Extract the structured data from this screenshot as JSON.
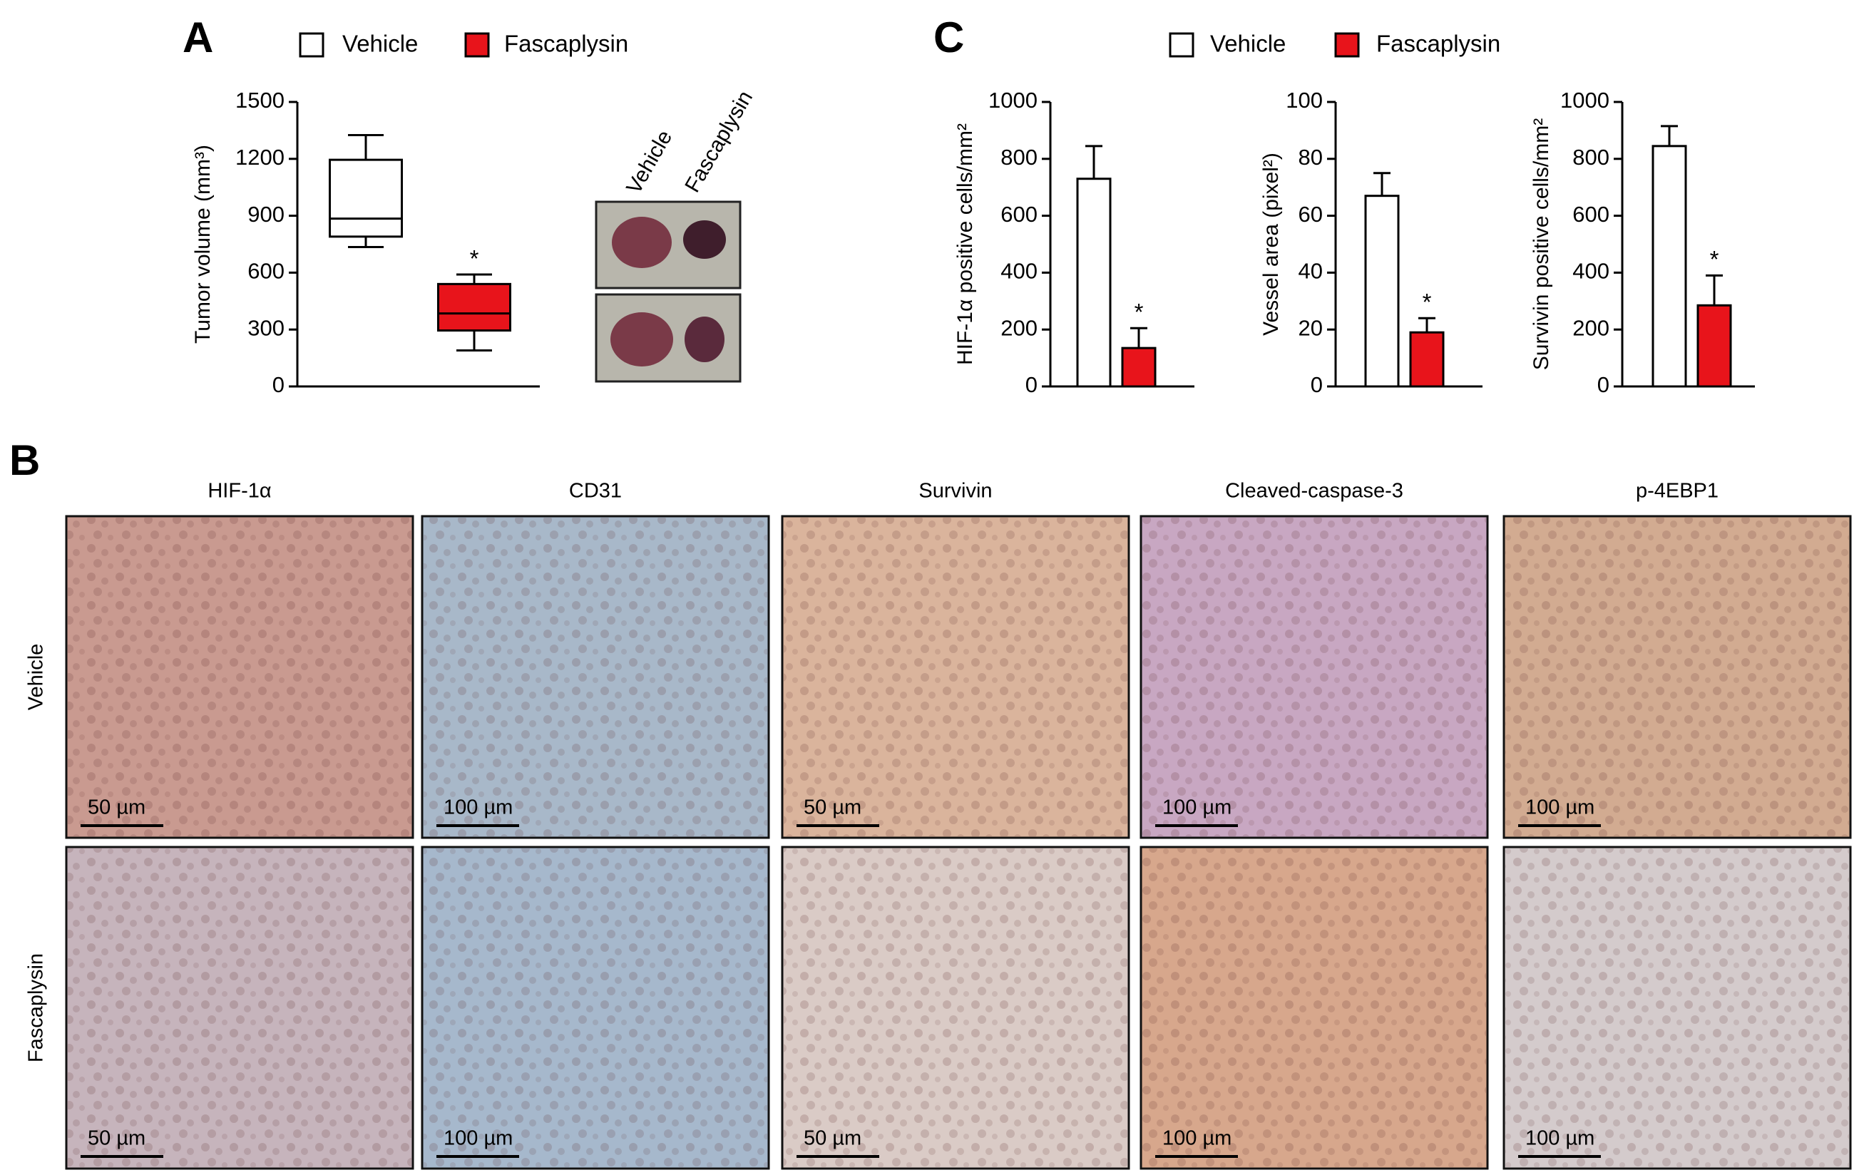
{
  "panel_labels": [
    "A",
    "B",
    "C"
  ],
  "legend": [
    {
      "name": "Vehicle",
      "color": "#ffffff"
    },
    {
      "name": "Fascaplysin",
      "color": "#e8141b"
    }
  ],
  "chart_data": [
    {
      "type": "box",
      "ylabel": "Tumor volume (mm³)",
      "categories": [
        null,
        null
      ],
      "boxes": [
        {
          "min": 735,
          "q1": 790,
          "median": 885,
          "q3": 1195,
          "max": 1325
        },
        {
          "min": 190,
          "q1": 295,
          "median": 385,
          "q3": 540,
          "max": 590
        }
      ],
      "significance": [
        null,
        "*"
      ],
      "ylim": [
        0,
        1500
      ],
      "yticks": [
        0,
        300,
        600,
        900,
        1200,
        1500
      ]
    },
    {
      "type": "bar",
      "ylabel": "HIF-1α positive cells/mm²",
      "categories": [
        null,
        null
      ],
      "values": [
        730,
        135
      ],
      "errors": [
        115,
        70
      ],
      "significance": [
        null,
        "*"
      ],
      "ylim": [
        0,
        1000
      ],
      "yticks": [
        0,
        200,
        400,
        600,
        800,
        1000
      ]
    },
    {
      "type": "bar",
      "ylabel": "Vessel area (pixel²)",
      "categories": [
        null,
        null
      ],
      "values": [
        67,
        19
      ],
      "errors": [
        8,
        5
      ],
      "significance": [
        null,
        "*"
      ],
      "ylim": [
        0,
        100
      ],
      "yticks": [
        0,
        20,
        40,
        60,
        80,
        100
      ]
    },
    {
      "type": "bar",
      "ylabel": "Survivin positive cells/mm²",
      "categories": [
        null,
        null
      ],
      "values": [
        845,
        285
      ],
      "errors": [
        70,
        105
      ],
      "significance": [
        null,
        "*"
      ],
      "ylim": [
        0,
        1000
      ],
      "yticks": [
        0,
        200,
        400,
        600,
        800,
        1000
      ]
    }
  ],
  "photo": {
    "labels": [
      "Vehicle",
      "Fascaplysin"
    ]
  },
  "micrographs": {
    "columns": [
      "HIF-1α",
      "CD31",
      "Survivin",
      "Cleaved-caspase-3",
      "p-4EBP1"
    ],
    "rows": [
      "Vehicle",
      "Fascaplysin"
    ],
    "scale_bars": [
      [
        "50 µm",
        "100 µm",
        "50 µm",
        "100 µm",
        "100 µm"
      ],
      [
        "50 µm",
        "100 µm",
        "50 µm",
        "100 µm",
        "100 µm"
      ]
    ]
  }
}
